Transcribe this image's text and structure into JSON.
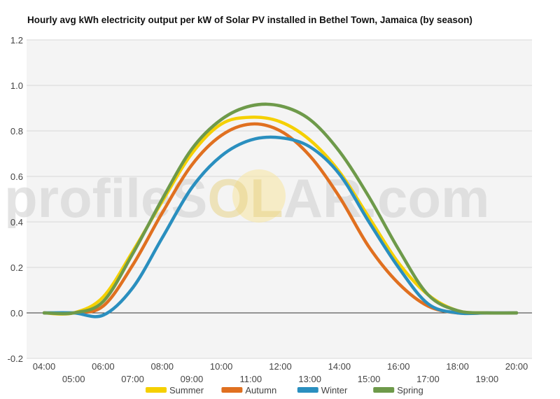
{
  "watermark": {
    "left": "profileS",
    "middle": "OL",
    "right": "AR.com"
  },
  "chart_data": {
    "type": "line",
    "title": "Hourly avg kWh electricity output per kW of Solar PV installed in Bethel Town, Jamaica (by season)",
    "xlabel": "",
    "ylabel": "",
    "x": [
      "04:00",
      "05:00",
      "06:00",
      "07:00",
      "08:00",
      "09:00",
      "10:00",
      "11:00",
      "12:00",
      "13:00",
      "14:00",
      "15:00",
      "16:00",
      "17:00",
      "18:00",
      "19:00",
      "20:00"
    ],
    "ylim": [
      -0.2,
      1.2
    ],
    "yticks": [
      "-0.2",
      "0.0",
      "0.2",
      "0.4",
      "0.6",
      "0.8",
      "1.0",
      "1.2"
    ],
    "grid": true,
    "legend_position": "bottom",
    "series": [
      {
        "name": "Summer",
        "color": "#f5d000",
        "values": [
          0.0,
          0.0,
          0.07,
          0.27,
          0.49,
          0.7,
          0.83,
          0.86,
          0.84,
          0.76,
          0.62,
          0.42,
          0.22,
          0.08,
          0.01,
          0.0,
          0.0
        ]
      },
      {
        "name": "Autumn",
        "color": "#e07020",
        "values": [
          0.0,
          0.0,
          0.03,
          0.21,
          0.44,
          0.65,
          0.78,
          0.83,
          0.8,
          0.69,
          0.51,
          0.29,
          0.13,
          0.03,
          0.0,
          0.0,
          0.0
        ]
      },
      {
        "name": "Winter",
        "color": "#2a8fbf",
        "values": [
          0.0,
          0.0,
          -0.01,
          0.11,
          0.33,
          0.55,
          0.69,
          0.76,
          0.77,
          0.73,
          0.61,
          0.4,
          0.2,
          0.04,
          0.0,
          0.0,
          0.0
        ]
      },
      {
        "name": "Spring",
        "color": "#6e9a4a",
        "values": [
          0.0,
          0.0,
          0.05,
          0.26,
          0.5,
          0.72,
          0.85,
          0.91,
          0.91,
          0.85,
          0.71,
          0.51,
          0.28,
          0.08,
          0.01,
          0.0,
          0.0
        ]
      }
    ]
  }
}
